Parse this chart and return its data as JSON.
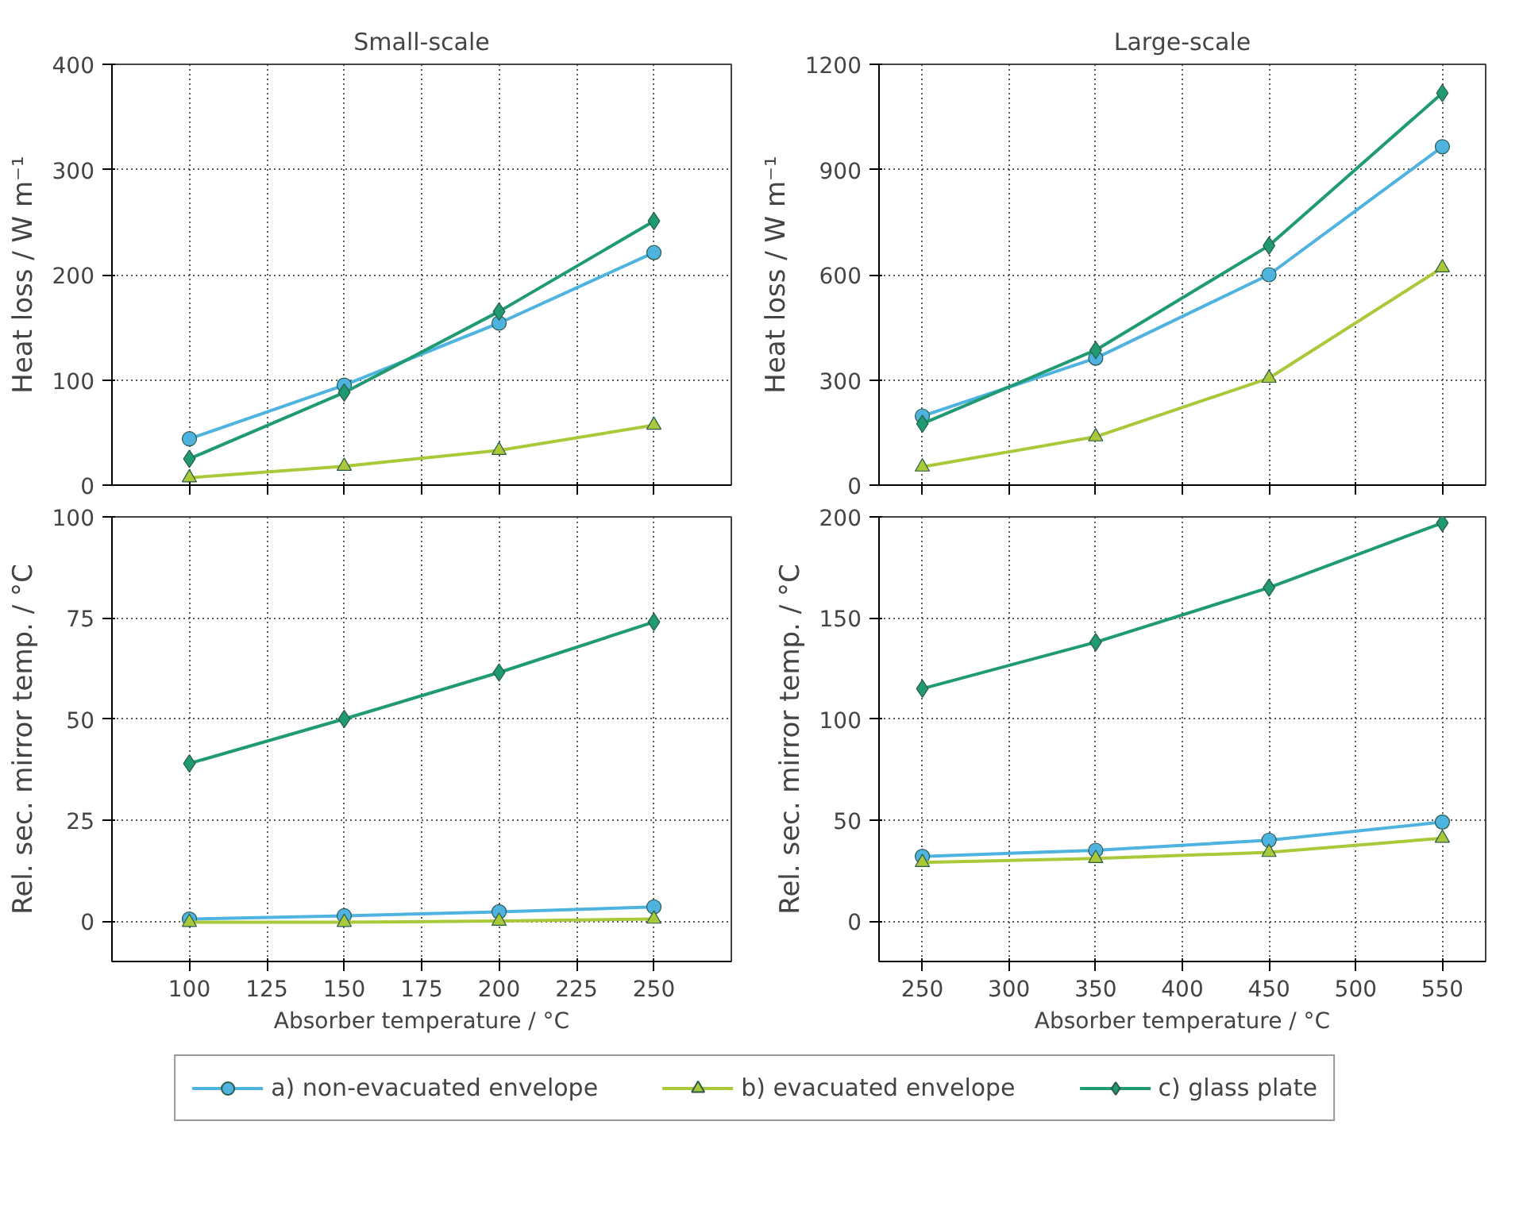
{
  "chart_data": [
    {
      "type": "line",
      "title": "Small-scale",
      "ylabel": "Heat loss / W m⁻¹",
      "x": [
        100,
        150,
        200,
        250
      ],
      "xlim": [
        75,
        275
      ],
      "xticks": [
        100,
        125,
        150,
        175,
        200,
        225,
        250
      ],
      "ylim": [
        0,
        400
      ],
      "yticks": [
        0,
        100,
        200,
        300,
        400
      ],
      "grid": true,
      "tick_labels": "y",
      "line_style": "solid",
      "series": [
        {
          "color": "#4fb3e0",
          "marker": "circle",
          "values": [
            44,
            95,
            154,
            221
          ]
        },
        {
          "color": "#aac93a",
          "marker": "triangle",
          "values": [
            7,
            18,
            33,
            57
          ]
        },
        {
          "color": "#1f9a73",
          "marker": "diamond",
          "values": [
            25,
            88,
            165,
            251
          ]
        }
      ]
    },
    {
      "type": "line",
      "title": "Large-scale",
      "ylabel": "Heat loss / W m⁻¹",
      "x": [
        250,
        350,
        450,
        550
      ],
      "xlim": [
        225,
        575
      ],
      "xticks": [
        250,
        300,
        350,
        400,
        450,
        500,
        550
      ],
      "ylim": [
        0,
        1200
      ],
      "yticks": [
        0,
        300,
        600,
        900,
        1200
      ],
      "grid": true,
      "tick_labels": "y",
      "line_style": "solid",
      "series": [
        {
          "color": "#4fb3e0",
          "marker": "circle",
          "values": [
            197,
            362,
            600,
            965
          ]
        },
        {
          "color": "#aac93a",
          "marker": "triangle",
          "values": [
            52,
            138,
            305,
            620
          ]
        },
        {
          "color": "#1f9a73",
          "marker": "diamond",
          "values": [
            175,
            385,
            683,
            1118
          ]
        }
      ]
    },
    {
      "type": "line",
      "xlabel": "Absorber temperature / °C",
      "ylabel": "Rel. sec. mirror temp. / °C",
      "x": [
        100,
        150,
        200,
        250
      ],
      "xlim": [
        75,
        275
      ],
      "xticks": [
        100,
        125,
        150,
        175,
        200,
        225,
        250
      ],
      "ylim": [
        -10,
        100
      ],
      "yticks": [
        0,
        25,
        50,
        75,
        100
      ],
      "grid": true,
      "line_style": "solid",
      "series": [
        {
          "color": "#4fb3e0",
          "marker": "circle",
          "values": [
            0.5,
            1.3,
            2.3,
            3.5
          ]
        },
        {
          "color": "#aac93a",
          "marker": "triangle",
          "values": [
            -0.3,
            -0.3,
            0,
            0.5
          ]
        },
        {
          "color": "#1f9a73",
          "marker": "diamond",
          "values": [
            39,
            50,
            61.5,
            74
          ]
        }
      ]
    },
    {
      "type": "line",
      "xlabel": "Absorber temperature / °C",
      "ylabel": "Rel. sec. mirror temp. / °C",
      "x": [
        250,
        350,
        450,
        550
      ],
      "xlim": [
        225,
        575
      ],
      "xticks": [
        250,
        300,
        350,
        400,
        450,
        500,
        550
      ],
      "ylim": [
        -20,
        200
      ],
      "yticks": [
        0,
        50,
        100,
        150,
        200
      ],
      "grid": true,
      "legend": "bottom",
      "line_style": "solid",
      "series": [
        {
          "name": "a) non-evacuated envelope",
          "color": "#4fb3e0",
          "marker": "circle",
          "values": [
            32,
            35,
            40,
            49
          ]
        },
        {
          "name": "b) evacuated envelope",
          "color": "#aac93a",
          "marker": "triangle",
          "values": [
            29,
            31,
            34,
            41
          ]
        },
        {
          "name": "c) glass plate",
          "color": "#1f9a73",
          "marker": "diamond",
          "values": [
            115,
            138,
            165,
            197
          ]
        }
      ]
    }
  ]
}
